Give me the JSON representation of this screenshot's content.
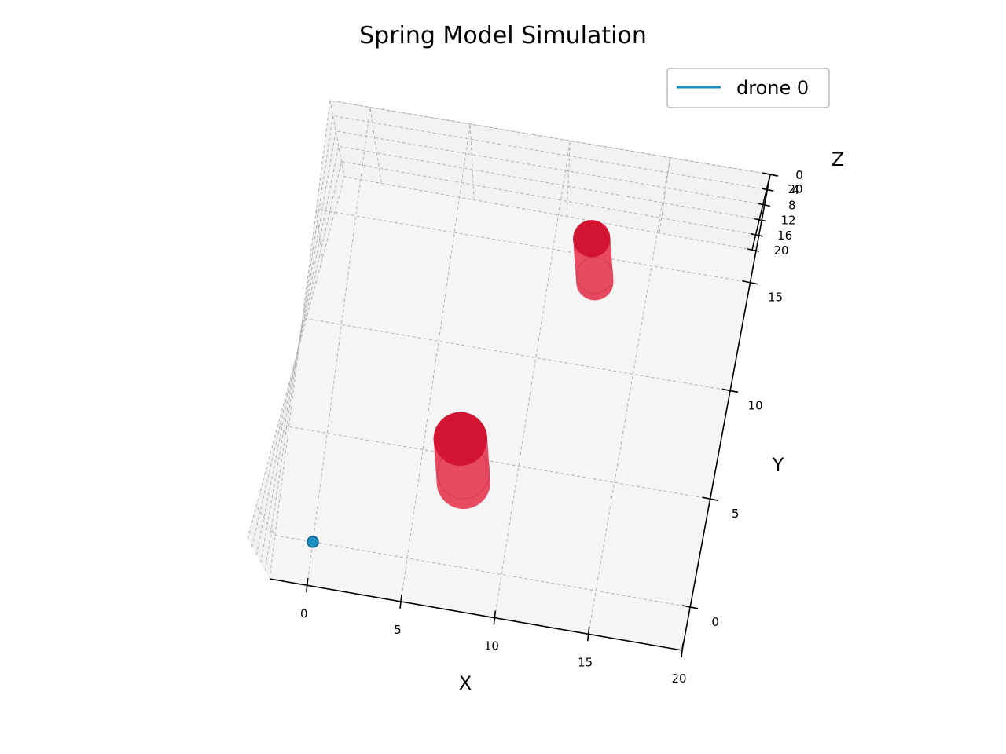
{
  "chart_data": {
    "type": "scatter",
    "projection": "3d",
    "title": "Spring Model Simulation",
    "xlabel": "X",
    "ylabel": "Y",
    "zlabel": "Z",
    "xlim": [
      -2,
      20
    ],
    "ylim": [
      -2,
      20
    ],
    "zlim": [
      0,
      20
    ],
    "x_ticks": [
      0,
      5,
      10,
      15,
      20
    ],
    "y_ticks": [
      0,
      5,
      10,
      15,
      20
    ],
    "z_ticks": [
      0,
      4,
      8,
      12,
      16,
      20
    ],
    "grid": true,
    "legend": {
      "placement": "upper-right",
      "entries": [
        "drone 0"
      ]
    },
    "series": [
      {
        "name": "drone 0",
        "color": "#1f8fc0",
        "points": [
          {
            "x": 0,
            "y": 0,
            "z": 0
          }
        ]
      }
    ],
    "obstacles": [
      {
        "shape": "cylinder",
        "center_x": 7,
        "center_y": 5,
        "radius": 1.3,
        "color": "#d21433"
      },
      {
        "shape": "cylinder",
        "center_x": 12,
        "center_y": 15,
        "radius": 0.9,
        "color": "#d21433"
      }
    ],
    "colors": {
      "obstacle": "#d21433",
      "obstacle_side": "#e84a62",
      "drone": "#1f8fc0",
      "pane": "#f2f2f2"
    }
  }
}
